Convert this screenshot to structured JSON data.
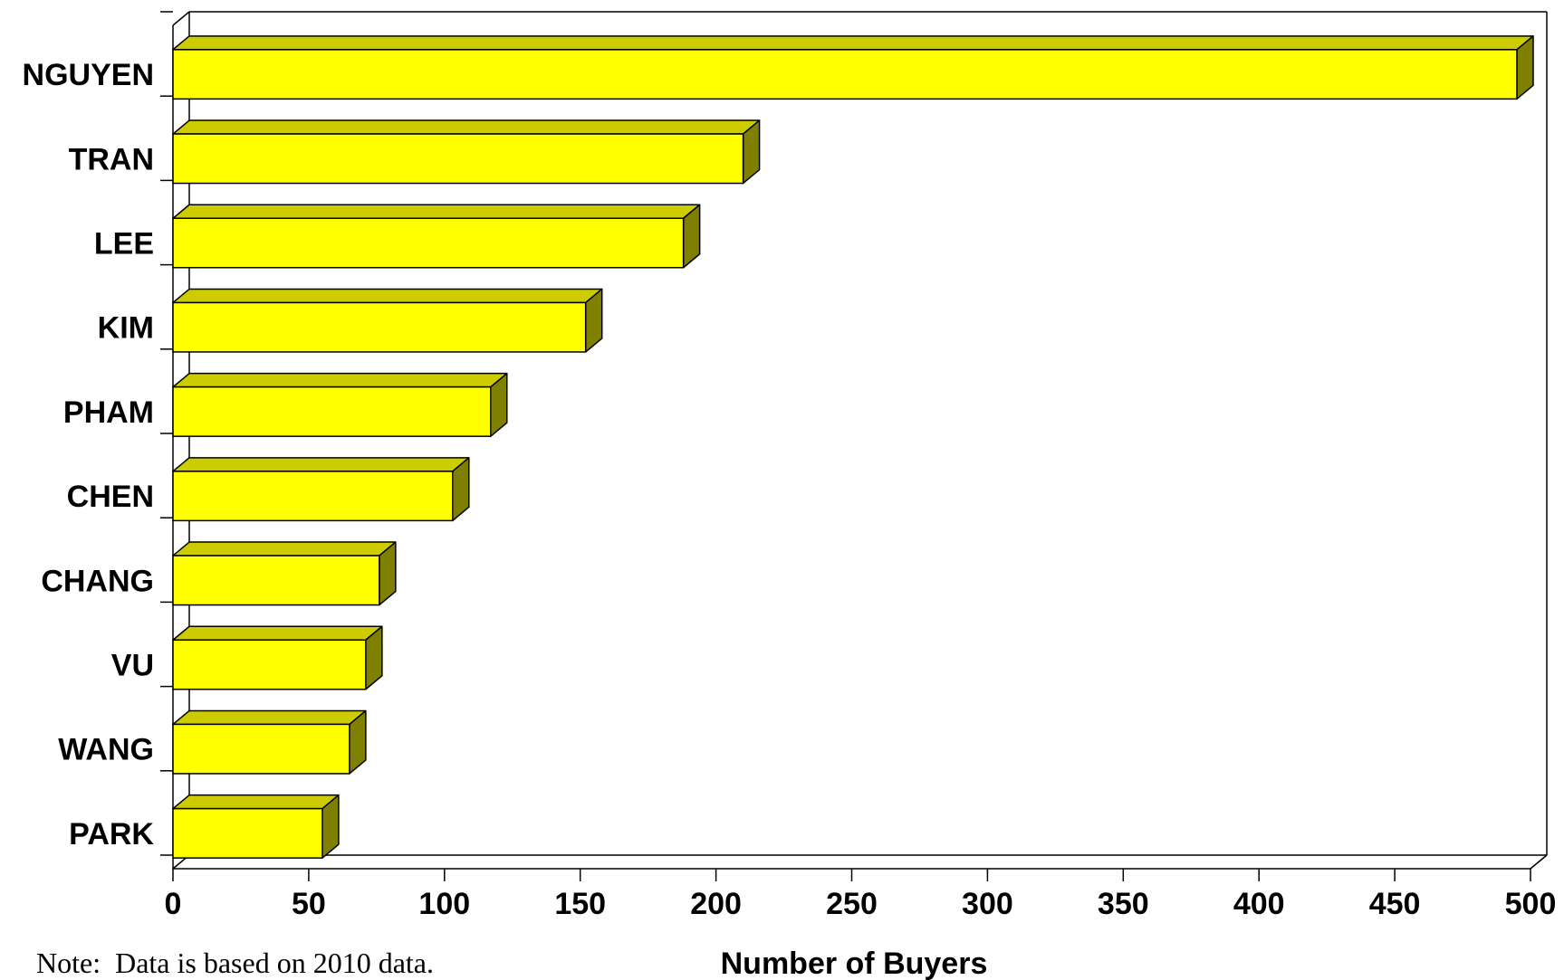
{
  "chart_data": {
    "type": "bar",
    "orientation": "horizontal",
    "style": "3d",
    "categories": [
      "NGUYEN",
      "TRAN",
      "LEE",
      "KIM",
      "PHAM",
      "CHEN",
      "CHANG",
      "VU",
      "WANG",
      "PARK"
    ],
    "values": [
      495,
      210,
      188,
      152,
      117,
      103,
      76,
      71,
      65,
      55
    ],
    "xlabel": "Number of Buyers",
    "ylabel": "",
    "xlim": [
      0,
      500
    ],
    "xticks": [
      "0",
      "50",
      "100",
      "150",
      "200",
      "250",
      "300",
      "350",
      "400",
      "450",
      "500"
    ],
    "grid": false,
    "legend": "none",
    "colors": {
      "bar_front": "#ffff00",
      "bar_top": "#cccc00",
      "bar_side": "#808000"
    }
  },
  "footnote": "Note:  Data is based on 2010 data."
}
